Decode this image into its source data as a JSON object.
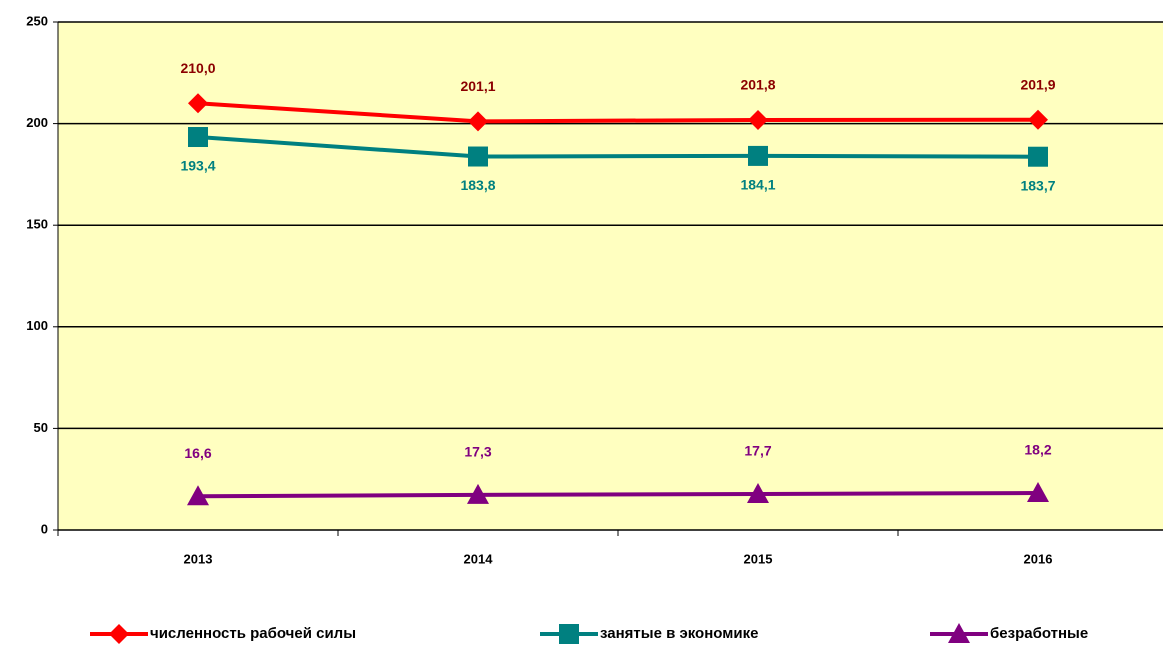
{
  "chart_data": {
    "type": "line",
    "categories": [
      "2013",
      "2014",
      "2015",
      "2016"
    ],
    "series": [
      {
        "name": "численность рабочей силы",
        "color": "#ff0000",
        "label_color": "#8b0000",
        "marker": "diamond",
        "values": [
          210.0,
          201.1,
          201.8,
          201.9
        ],
        "value_labels": [
          "210,0",
          "201,1",
          "201,8",
          "201,9"
        ]
      },
      {
        "name": "занятые в экономике",
        "color": "#008080",
        "label_color": "#008080",
        "marker": "square",
        "values": [
          193.4,
          183.8,
          184.1,
          183.7
        ],
        "value_labels": [
          "193,4",
          "183,8",
          "184,1",
          "183,7"
        ]
      },
      {
        "name": "безработные",
        "color": "#800080",
        "label_color": "#800080",
        "marker": "triangle",
        "values": [
          16.6,
          17.3,
          17.7,
          18.2
        ],
        "value_labels": [
          "16,6",
          "17,3",
          "17,7",
          "18,2"
        ]
      }
    ],
    "ylim": [
      0,
      250
    ],
    "yticks": [
      0,
      50,
      100,
      150,
      200,
      250
    ],
    "grid": true,
    "plot_background": "#ffffc0",
    "legend": "bottom"
  }
}
